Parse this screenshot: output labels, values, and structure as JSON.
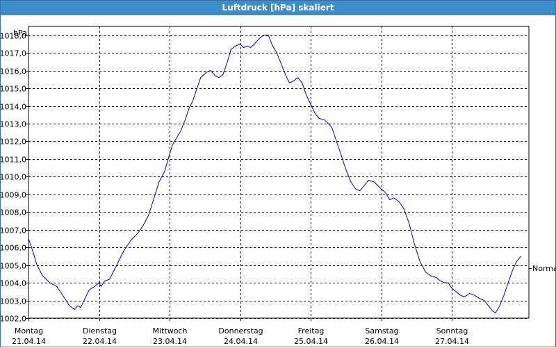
{
  "window": {
    "title": "Luftdruck [hPa] skaliert"
  },
  "chart_data": {
    "type": "line",
    "title": "Luftdruck [hPa] skaliert",
    "ylabel": "hPa",
    "xlabel": "",
    "ylim": [
      1002.0,
      1018.5
    ],
    "yticks": [
      "1002,0",
      "1003,0",
      "1004,0",
      "1005,0",
      "1006,0",
      "1007,0",
      "1008,0",
      "1009,0",
      "1010,0",
      "1011,0",
      "1012,0",
      "1013,0",
      "1014,0",
      "1015,0",
      "1016,0",
      "1017,0",
      "1018,0"
    ],
    "days": [
      {
        "name": "Montag",
        "date": "21.04.14"
      },
      {
        "name": "Dienstag",
        "date": "22.04.14"
      },
      {
        "name": "Mittwoch",
        "date": "23.04.14"
      },
      {
        "name": "Donnerstag",
        "date": "24.04.14"
      },
      {
        "name": "Freitag",
        "date": "25.04.14"
      },
      {
        "name": "Samstag",
        "date": "26.04.14"
      },
      {
        "name": "Sonntag",
        "date": "27.04.14"
      }
    ],
    "grid": true,
    "legend": "right",
    "series": [
      {
        "name": "Normal",
        "color": "#0000aa",
        "points": [
          [
            0.0,
            1006.5
          ],
          [
            0.06,
            1005.8
          ],
          [
            0.12,
            1005.0
          ],
          [
            0.2,
            1004.4
          ],
          [
            0.3,
            1004.0
          ],
          [
            0.4,
            1003.8
          ],
          [
            0.5,
            1003.2
          ],
          [
            0.58,
            1002.7
          ],
          [
            0.65,
            1002.5
          ],
          [
            0.7,
            1002.7
          ],
          [
            0.74,
            1002.6
          ],
          [
            0.8,
            1003.1
          ],
          [
            0.86,
            1003.6
          ],
          [
            0.94,
            1003.8
          ],
          [
            1.0,
            1004.0
          ],
          [
            1.03,
            1003.8
          ],
          [
            1.08,
            1004.1
          ],
          [
            1.15,
            1004.2
          ],
          [
            1.25,
            1005.0
          ],
          [
            1.35,
            1005.8
          ],
          [
            1.45,
            1006.4
          ],
          [
            1.55,
            1006.8
          ],
          [
            1.62,
            1007.2
          ],
          [
            1.7,
            1007.8
          ],
          [
            1.78,
            1008.8
          ],
          [
            1.85,
            1009.7
          ],
          [
            1.93,
            1010.3
          ],
          [
            1.98,
            1011.0
          ],
          [
            2.04,
            1011.8
          ],
          [
            2.1,
            1012.2
          ],
          [
            2.16,
            1012.6
          ],
          [
            2.22,
            1013.2
          ],
          [
            2.28,
            1013.9
          ],
          [
            2.33,
            1014.3
          ],
          [
            2.38,
            1014.9
          ],
          [
            2.44,
            1015.6
          ],
          [
            2.52,
            1015.9
          ],
          [
            2.58,
            1016.0
          ],
          [
            2.65,
            1015.7
          ],
          [
            2.7,
            1015.6
          ],
          [
            2.76,
            1015.8
          ],
          [
            2.82,
            1016.5
          ],
          [
            2.87,
            1017.2
          ],
          [
            2.94,
            1017.4
          ],
          [
            3.0,
            1017.5
          ],
          [
            3.05,
            1017.3
          ],
          [
            3.1,
            1017.4
          ],
          [
            3.15,
            1017.3
          ],
          [
            3.2,
            1017.5
          ],
          [
            3.27,
            1017.8
          ],
          [
            3.33,
            1018.0
          ],
          [
            3.4,
            1018.0
          ],
          [
            3.46,
            1017.4
          ],
          [
            3.52,
            1017.0
          ],
          [
            3.58,
            1016.4
          ],
          [
            3.65,
            1015.7
          ],
          [
            3.7,
            1015.3
          ],
          [
            3.75,
            1015.4
          ],
          [
            3.82,
            1015.6
          ],
          [
            3.88,
            1015.3
          ],
          [
            3.94,
            1014.6
          ],
          [
            4.0,
            1014.1
          ],
          [
            4.06,
            1013.6
          ],
          [
            4.12,
            1013.3
          ],
          [
            4.2,
            1013.2
          ],
          [
            4.3,
            1012.8
          ],
          [
            4.4,
            1011.6
          ],
          [
            4.5,
            1010.4
          ],
          [
            4.57,
            1009.7
          ],
          [
            4.64,
            1009.3
          ],
          [
            4.7,
            1009.2
          ],
          [
            4.76,
            1009.5
          ],
          [
            4.82,
            1009.8
          ],
          [
            4.9,
            1009.7
          ],
          [
            5.0,
            1009.3
          ],
          [
            5.06,
            1009.1
          ],
          [
            5.12,
            1008.7
          ],
          [
            5.18,
            1008.8
          ],
          [
            5.25,
            1008.6
          ],
          [
            5.32,
            1008.2
          ],
          [
            5.4,
            1007.3
          ],
          [
            5.47,
            1006.2
          ],
          [
            5.55,
            1005.2
          ],
          [
            5.63,
            1004.6
          ],
          [
            5.7,
            1004.4
          ],
          [
            5.78,
            1004.3
          ],
          [
            5.84,
            1004.1
          ],
          [
            5.9,
            1004.0
          ],
          [
            5.95,
            1004.0
          ],
          [
            6.0,
            1003.7
          ],
          [
            6.06,
            1003.5
          ],
          [
            6.12,
            1003.3
          ],
          [
            6.18,
            1003.2
          ],
          [
            6.25,
            1003.4
          ],
          [
            6.32,
            1003.3
          ],
          [
            6.4,
            1003.1
          ],
          [
            6.46,
            1003.0
          ],
          [
            6.52,
            1002.7
          ],
          [
            6.58,
            1002.4
          ],
          [
            6.62,
            1002.3
          ],
          [
            6.68,
            1002.7
          ],
          [
            6.74,
            1003.3
          ],
          [
            6.8,
            1004.0
          ],
          [
            6.86,
            1004.7
          ],
          [
            6.92,
            1005.2
          ],
          [
            6.98,
            1005.5
          ]
        ]
      }
    ]
  }
}
